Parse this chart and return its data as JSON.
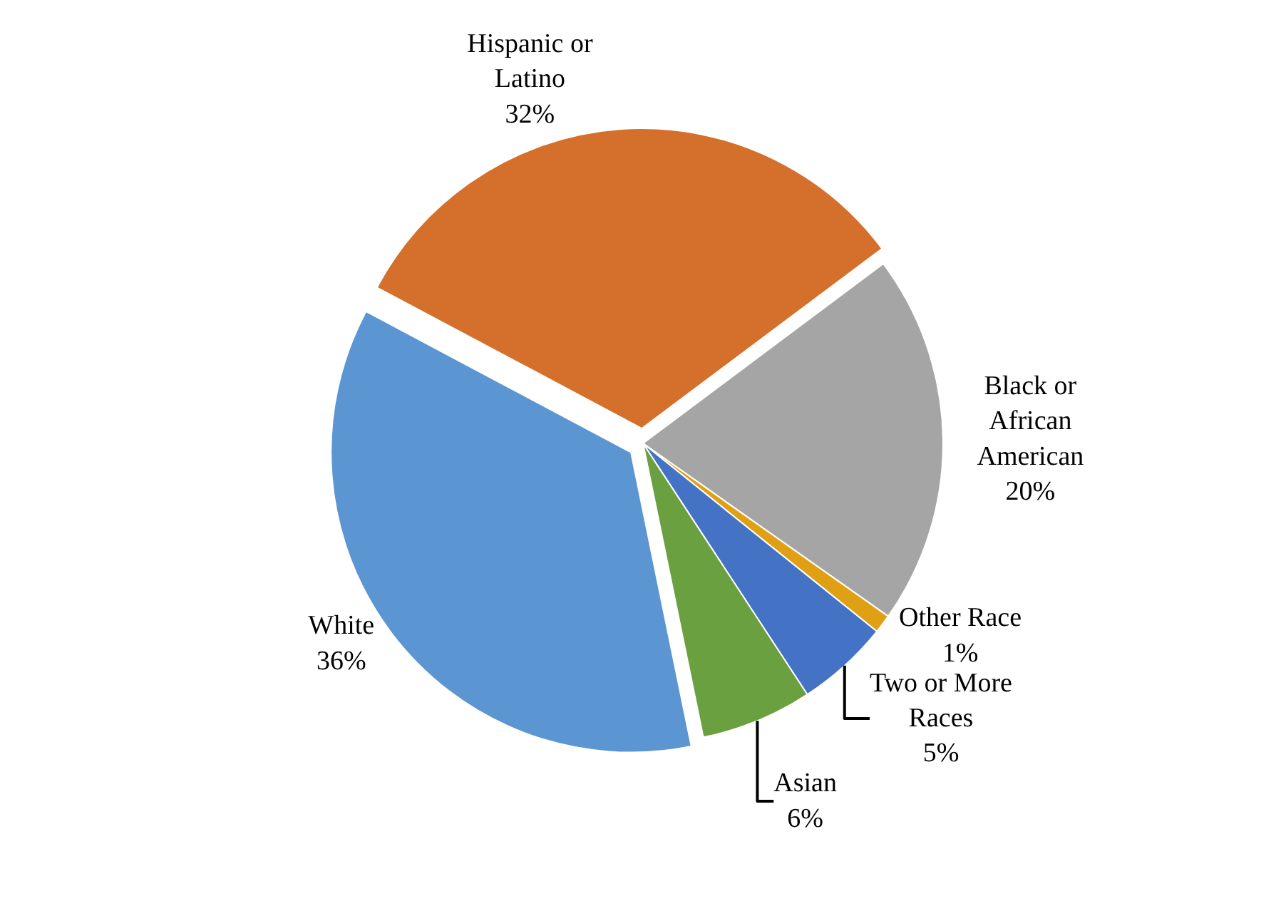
{
  "chart_data": {
    "type": "pie",
    "categories": [
      "Hispanic or Latino",
      "Black or African American",
      "Other Race",
      "Two or More Races",
      "Asian",
      "White"
    ],
    "values": [
      32,
      20,
      1,
      5,
      6,
      36
    ],
    "colors": [
      "#d4702b",
      "#a5a5a5",
      "#e0a014",
      "#4472c4",
      "#6aa040",
      "#5b96d2"
    ],
    "value_labels": [
      "32%",
      "20%",
      "1%",
      "5%",
      "6%",
      "36%"
    ],
    "legend": false
  }
}
